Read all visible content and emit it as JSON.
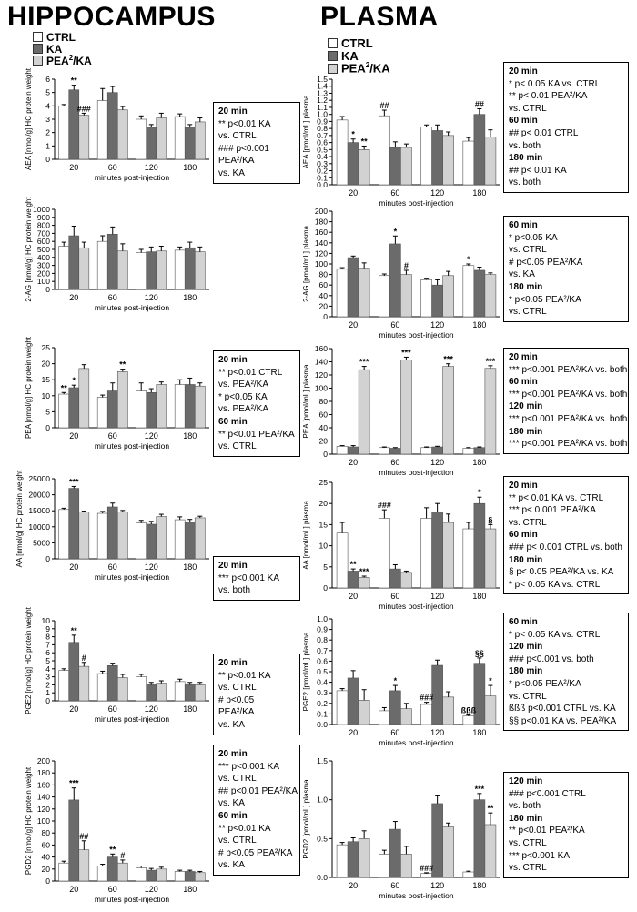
{
  "titles": {
    "left": "HIPPOCAMPUS",
    "right": "PLASMA"
  },
  "legend": {
    "ctrl": "CTRL",
    "ka": "KA",
    "pea": "PEA",
    "pea_sup": "2",
    "pea_tail": "/KA"
  },
  "colors": {
    "ctrl": "#ffffff",
    "ka": "#6b6b6b",
    "pea": "#d2d2d2"
  },
  "chart_data": [
    {
      "id": "hc_aea",
      "type": "bar",
      "ylabel": "AEA [nmol/g] HC protein weight",
      "xlabel": "minutes post-injection",
      "categories": [
        "20",
        "60",
        "120",
        "180"
      ],
      "ylim": [
        0,
        6
      ],
      "ystep": 1,
      "series": [
        {
          "name": "CTRL",
          "values": [
            4.0,
            4.4,
            3.0,
            3.2
          ]
        },
        {
          "name": "KA",
          "values": [
            5.2,
            5.0,
            2.4,
            2.4
          ]
        },
        {
          "name": "PEA2/KA",
          "values": [
            3.3,
            3.7,
            3.1,
            2.8
          ]
        }
      ],
      "errors": [
        [
          0.1,
          0.9,
          0.25,
          0.2
        ],
        [
          0.35,
          0.45,
          0.2,
          0.2
        ],
        [
          0.15,
          0.25,
          0.35,
          0.3
        ]
      ],
      "sig": [
        [
          0,
          1,
          "**"
        ],
        [
          0,
          2,
          "###"
        ]
      ]
    },
    {
      "id": "hc_2ag",
      "type": "bar",
      "ylabel": "2-AG [nmol/g] HC protein weight",
      "xlabel": "minutes post-injection",
      "categories": [
        "20",
        "60",
        "120",
        "180"
      ],
      "ylim": [
        0,
        1000
      ],
      "ystep": 100,
      "series": [
        {
          "name": "CTRL",
          "values": [
            540,
            600,
            460,
            490
          ]
        },
        {
          "name": "KA",
          "values": [
            670,
            690,
            470,
            520
          ]
        },
        {
          "name": "PEA2/KA",
          "values": [
            520,
            480,
            480,
            470
          ]
        }
      ],
      "errors": [
        [
          50,
          70,
          40,
          40
        ],
        [
          120,
          90,
          60,
          70
        ],
        [
          70,
          90,
          60,
          60
        ]
      ],
      "sig": []
    },
    {
      "id": "hc_pea",
      "type": "bar",
      "ylabel": "PEA [nmol/g] HC protein weight",
      "xlabel": "minutes post-injection",
      "categories": [
        "20",
        "60",
        "120",
        "180"
      ],
      "ylim": [
        0,
        25
      ],
      "ystep": 5,
      "series": [
        {
          "name": "CTRL",
          "values": [
            10.5,
            9.5,
            11.5,
            13.5
          ]
        },
        {
          "name": "KA",
          "values": [
            12.5,
            11.5,
            11.0,
            13.5
          ]
        },
        {
          "name": "PEA2/KA",
          "values": [
            18.5,
            17.5,
            13.5,
            13.0
          ]
        }
      ],
      "errors": [
        [
          0.5,
          0.7,
          2.5,
          1.5
        ],
        [
          0.8,
          2.5,
          1.2,
          2.0
        ],
        [
          1.2,
          0.8,
          0.8,
          1.0
        ]
      ],
      "sig": [
        [
          0,
          0,
          "**"
        ],
        [
          0,
          1,
          "*"
        ],
        [
          1,
          2,
          "**"
        ]
      ]
    },
    {
      "id": "hc_aa",
      "type": "bar",
      "ylabel": "AA [nmol/g] HC protein weight",
      "xlabel": "minutes post-injection",
      "categories": [
        "20",
        "60",
        "120",
        "180"
      ],
      "ylim": [
        0,
        25000
      ],
      "ystep": 5000,
      "series": [
        {
          "name": "CTRL",
          "values": [
            15400,
            14200,
            11200,
            12200
          ]
        },
        {
          "name": "KA",
          "values": [
            22000,
            16200,
            10800,
            11400
          ]
        },
        {
          "name": "PEA2/KA",
          "values": [
            14600,
            14600,
            13200,
            12800
          ]
        }
      ],
      "errors": [
        [
          400,
          600,
          800,
          900
        ],
        [
          600,
          1200,
          900,
          900
        ],
        [
          300,
          500,
          700,
          500
        ]
      ],
      "sig": [
        [
          0,
          1,
          "***"
        ]
      ]
    },
    {
      "id": "hc_pge2",
      "type": "bar",
      "ylabel": "PGE2 [nmol/g] HC protein weight",
      "xlabel": "minutes post-injection",
      "categories": [
        "20",
        "60",
        "120",
        "180"
      ],
      "ylim": [
        0,
        10
      ],
      "ystep": 1,
      "series": [
        {
          "name": "CTRL",
          "values": [
            3.8,
            3.4,
            3.0,
            2.4
          ]
        },
        {
          "name": "KA",
          "values": [
            7.3,
            4.4,
            2.0,
            2.0
          ]
        },
        {
          "name": "PEA2/KA",
          "values": [
            4.3,
            2.9,
            2.2,
            2.0
          ]
        }
      ],
      "errors": [
        [
          0.2,
          0.3,
          0.3,
          0.3
        ],
        [
          0.9,
          0.3,
          0.3,
          0.3
        ],
        [
          0.5,
          0.4,
          0.3,
          0.3
        ]
      ],
      "sig": [
        [
          0,
          1,
          "**"
        ],
        [
          0,
          2,
          "#"
        ]
      ]
    },
    {
      "id": "hc_pgd2",
      "type": "bar",
      "ylabel": "PGD2 [nmol/g] HC protein weight",
      "xlabel": "minutes post-injection",
      "categories": [
        "20",
        "60",
        "120",
        "180"
      ],
      "ylim": [
        0,
        200
      ],
      "ystep": 20,
      "series": [
        {
          "name": "CTRL",
          "values": [
            30,
            25,
            22,
            16
          ]
        },
        {
          "name": "KA",
          "values": [
            135,
            40,
            18,
            16
          ]
        },
        {
          "name": "PEA2/KA",
          "values": [
            52,
            30,
            20,
            14
          ]
        }
      ],
      "errors": [
        [
          3,
          3,
          3,
          2
        ],
        [
          20,
          5,
          3,
          2
        ],
        [
          15,
          5,
          3,
          2
        ]
      ],
      "sig": [
        [
          0,
          1,
          "***"
        ],
        [
          0,
          2,
          "##"
        ],
        [
          1,
          1,
          "**"
        ],
        [
          1,
          2,
          "#"
        ]
      ]
    },
    {
      "id": "pl_aea",
      "type": "bar",
      "ylabel": "AEA [pmol/mL] plasma",
      "xlabel": "minutes post-injection",
      "categories": [
        "20",
        "60",
        "120",
        "180"
      ],
      "ylim": [
        0,
        1.5
      ],
      "ystep": 0.1,
      "series": [
        {
          "name": "CTRL",
          "values": [
            0.92,
            0.98,
            0.82,
            0.62
          ]
        },
        {
          "name": "KA",
          "values": [
            0.6,
            0.53,
            0.77,
            1.0
          ]
        },
        {
          "name": "PEA2/KA",
          "values": [
            0.5,
            0.53,
            0.7,
            0.68
          ]
        }
      ],
      "errors": [
        [
          0.05,
          0.08,
          0.03,
          0.05
        ],
        [
          0.05,
          0.08,
          0.08,
          0.08
        ],
        [
          0.05,
          0.05,
          0.05,
          0.1
        ]
      ],
      "sig": [
        [
          0,
          1,
          "*"
        ],
        [
          0,
          2,
          "**"
        ],
        [
          1,
          0,
          "##"
        ],
        [
          3,
          1,
          "##"
        ]
      ]
    },
    {
      "id": "pl_2ag",
      "type": "bar",
      "ylabel": "2-AG [pmol/mL] plasma",
      "xlabel": "minutes post-injection",
      "categories": [
        "20",
        "60",
        "120",
        "180"
      ],
      "ylim": [
        0,
        200
      ],
      "ystep": 20,
      "series": [
        {
          "name": "CTRL",
          "values": [
            90,
            78,
            70,
            97
          ]
        },
        {
          "name": "KA",
          "values": [
            112,
            138,
            60,
            88
          ]
        },
        {
          "name": "PEA2/KA",
          "values": [
            92,
            80,
            78,
            80
          ]
        }
      ],
      "errors": [
        [
          3,
          3,
          3,
          3
        ],
        [
          3,
          15,
          10,
          6
        ],
        [
          10,
          8,
          8,
          3
        ]
      ],
      "sig": [
        [
          1,
          1,
          "*"
        ],
        [
          1,
          2,
          "#"
        ],
        [
          3,
          0,
          "*"
        ]
      ]
    },
    {
      "id": "pl_pea",
      "type": "bar",
      "ylabel": "PEA [pmol/mL] plasma",
      "xlabel": "minutes post-injection",
      "categories": [
        "20",
        "60",
        "120",
        "180"
      ],
      "ylim": [
        0,
        160
      ],
      "ystep": 20,
      "series": [
        {
          "name": "CTRL",
          "values": [
            12,
            10,
            10,
            9
          ]
        },
        {
          "name": "KA",
          "values": [
            11,
            9,
            11,
            10
          ]
        },
        {
          "name": "PEA2/KA",
          "values": [
            128,
            143,
            133,
            130
          ]
        }
      ],
      "errors": [
        [
          1,
          1,
          1,
          1
        ],
        [
          2,
          1,
          1,
          1
        ],
        [
          5,
          4,
          4,
          4
        ]
      ],
      "sig": [
        [
          0,
          2,
          "***"
        ],
        [
          1,
          2,
          "***"
        ],
        [
          2,
          2,
          "***"
        ],
        [
          3,
          2,
          "***"
        ]
      ]
    },
    {
      "id": "pl_aa",
      "type": "bar",
      "ylabel": "AA [nmol/mL] plasma",
      "xlabel": "minutes post-injection",
      "categories": [
        "20",
        "60",
        "120",
        "180"
      ],
      "ylim": [
        0,
        25
      ],
      "ystep": 5,
      "series": [
        {
          "name": "CTRL",
          "values": [
            13.0,
            16.5,
            16.5,
            14.0
          ]
        },
        {
          "name": "KA",
          "values": [
            4.0,
            4.5,
            18.0,
            20.0
          ]
        },
        {
          "name": "PEA2/KA",
          "values": [
            2.5,
            3.7,
            15.5,
            14.0
          ]
        }
      ],
      "errors": [
        [
          2.5,
          2.0,
          2.5,
          1.5
        ],
        [
          0.5,
          1.0,
          2.0,
          1.5
        ],
        [
          0.3,
          0.3,
          2.0,
          1.0
        ]
      ],
      "sig": [
        [
          0,
          1,
          "**"
        ],
        [
          0,
          2,
          "***"
        ],
        [
          1,
          0,
          "###"
        ],
        [
          3,
          1,
          "*"
        ],
        [
          3,
          2,
          "§"
        ]
      ]
    },
    {
      "id": "pl_pge2",
      "type": "bar",
      "ylabel": "PGE2 [pmol/mL] plasma",
      "xlabel": "minutes post-injection",
      "categories": [
        "20",
        "60",
        "120",
        "180"
      ],
      "ylim": [
        0,
        1.0
      ],
      "ystep": 0.1,
      "series": [
        {
          "name": "CTRL",
          "values": [
            0.32,
            0.13,
            0.19,
            0.08
          ]
        },
        {
          "name": "KA",
          "values": [
            0.44,
            0.32,
            0.56,
            0.58
          ]
        },
        {
          "name": "PEA2/KA",
          "values": [
            0.23,
            0.15,
            0.26,
            0.27
          ]
        }
      ],
      "errors": [
        [
          0.02,
          0.03,
          0.02,
          0.01
        ],
        [
          0.07,
          0.05,
          0.05,
          0.05
        ],
        [
          0.1,
          0.05,
          0.05,
          0.1
        ]
      ],
      "sig": [
        [
          1,
          1,
          "*"
        ],
        [
          2,
          0,
          "###"
        ],
        [
          3,
          0,
          "ßßß"
        ],
        [
          3,
          1,
          "§§"
        ],
        [
          3,
          2,
          "*"
        ]
      ]
    },
    {
      "id": "pl_pgd2",
      "type": "bar",
      "ylabel": "PGD2 [pmol/mL] plasma",
      "xlabel": "minutes post-injection",
      "categories": [
        "20",
        "60",
        "120",
        "180"
      ],
      "ylim": [
        0,
        1.5
      ],
      "ystep": 0.5,
      "series": [
        {
          "name": "CTRL",
          "values": [
            0.42,
            0.3,
            0.05,
            0.07
          ]
        },
        {
          "name": "KA",
          "values": [
            0.46,
            0.62,
            0.95,
            1.0
          ]
        },
        {
          "name": "PEA2/KA",
          "values": [
            0.5,
            0.3,
            0.65,
            0.68
          ]
        }
      ],
      "errors": [
        [
          0.03,
          0.05,
          0.01,
          0.01
        ],
        [
          0.05,
          0.1,
          0.1,
          0.08
        ],
        [
          0.1,
          0.1,
          0.05,
          0.15
        ]
      ],
      "sig": [
        [
          2,
          0,
          "###"
        ],
        [
          3,
          1,
          "***"
        ],
        [
          3,
          2,
          "**"
        ]
      ]
    }
  ],
  "annotations": {
    "hc_aea": [
      "20 min",
      "** p<0.01 KA",
      "vs. CTRL",
      "### p<0.001",
      "PEA²/KA",
      "vs. KA"
    ],
    "hc_pea": [
      "20 min",
      "** p<0.01 CTRL",
      "vs. PEA²/KA",
      "* p<0.05 KA",
      "vs. PEA²/KA",
      "60 min",
      "** p<0.01 PEA²/KA",
      "vs. CTRL"
    ],
    "hc_aa": [
      "20 min",
      "*** p<0.001 KA",
      "vs. both"
    ],
    "hc_pge2": [
      "20 min",
      "** p<0.01 KA",
      "vs. CTRL",
      "# p<0.05",
      "PEA²/KA",
      "vs. KA"
    ],
    "hc_pgd2": [
      "20 min",
      "*** p<0.001 KA",
      "vs. CTRL",
      "## p<0.01 PEA²/KA",
      "vs. KA",
      "60 min",
      "** p<0.01 KA",
      "vs. CTRL",
      "# p<0.05 PEA²/KA",
      "vs. KA"
    ],
    "pl_aea": [
      "20 min",
      "* p< 0.05 KA vs. CTRL",
      "** p< 0.01 PEA²/KA",
      "vs. CTRL",
      "60 min",
      "## p< 0.01 CTRL",
      "vs. both",
      "180 min",
      "## p< 0.01 KA",
      "vs. both"
    ],
    "pl_2ag": [
      "60 min",
      "* p<0.05 KA",
      "vs. CTRL",
      "# p<0.05 PEA²/KA",
      "vs. KA",
      "180 min",
      "* p<0.05 PEA²/KA",
      "vs. CTRL"
    ],
    "pl_pea": [
      "20 min",
      "*** p<0.001 PEA²/KA vs. both",
      "60 min",
      "*** p<0.001 PEA²/KA vs. both",
      "120 min",
      "*** p<0.001 PEA²/KA vs. both",
      "180 min",
      "*** p<0.001 PEA²/KA vs. both"
    ],
    "pl_aa": [
      "20 min",
      "** p< 0.01 KA vs.  CTRL",
      "*** p< 0.001 PEA²/KA",
      "vs. CTRL",
      "60 min",
      "### p< 0.001 CTRL vs. both",
      "180 min",
      "§ p< 0.05 PEA²/KA vs. KA",
      "* p< 0.05 KA vs. CTRL"
    ],
    "pl_pge2": [
      "60 min",
      "* p< 0.05 KA vs. CTRL",
      "120 min",
      "### p<0.001 vs. both",
      "180 min",
      "* p<0.05 PEA²/KA",
      "vs. CTRL",
      "ßßß p<0.001 CTRL vs. KA",
      "§§ p<0.01 KA vs.  PEA²/KA"
    ],
    "pl_pgd2": [
      "120 min",
      "### p<0.001 CTRL",
      "vs. both",
      "180 min",
      "** p<0.01 PEA²/KA",
      "vs. CTRL",
      "*** p<0.001 KA",
      "vs. CTRL"
    ]
  }
}
